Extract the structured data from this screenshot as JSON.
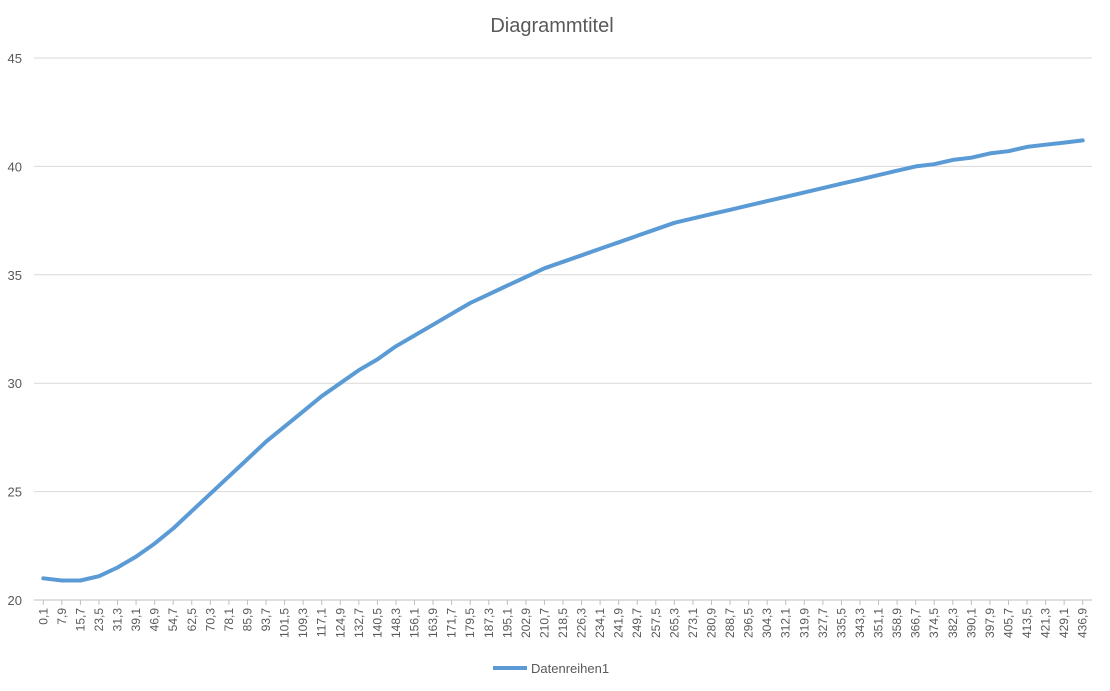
{
  "chart_data": {
    "type": "line",
    "title": "Diagrammtitel",
    "xlabel": "",
    "ylabel": "",
    "ylim": [
      20,
      45
    ],
    "yticks": [
      20,
      25,
      30,
      35,
      40,
      45
    ],
    "categories": [
      "0,1",
      "7,9",
      "15,7",
      "23,5",
      "31,3",
      "39,1",
      "46,9",
      "54,7",
      "62,5",
      "70,3",
      "78,1",
      "85,9",
      "93,7",
      "101,5",
      "109,3",
      "117,1",
      "124,9",
      "132,7",
      "140,5",
      "148,3",
      "156,1",
      "163,9",
      "171,7",
      "179,5",
      "187,3",
      "195,1",
      "202,9",
      "210,7",
      "218,5",
      "226,3",
      "234,1",
      "241,9",
      "249,7",
      "257,5",
      "265,3",
      "273,1",
      "280,9",
      "288,7",
      "296,5",
      "304,3",
      "312,1",
      "319,9",
      "327,7",
      "335,5",
      "343,3",
      "351,1",
      "358,9",
      "366,7",
      "374,5",
      "382,3",
      "390,1",
      "397,9",
      "405,7",
      "413,5",
      "421,3",
      "429,1",
      "436,9"
    ],
    "grid": true,
    "legend_position": "bottom",
    "color": "#5b9bd5",
    "series": [
      {
        "name": "Datenreihen1",
        "values": [
          21.0,
          20.9,
          20.9,
          21.1,
          21.5,
          22.0,
          22.6,
          23.3,
          24.1,
          24.9,
          25.7,
          26.5,
          27.3,
          28.0,
          28.7,
          29.4,
          30.0,
          30.6,
          31.1,
          31.7,
          32.2,
          32.7,
          33.2,
          33.7,
          34.1,
          34.5,
          34.9,
          35.3,
          35.6,
          35.9,
          36.2,
          36.5,
          36.8,
          37.1,
          37.4,
          37.6,
          37.8,
          38.0,
          38.2,
          38.4,
          38.6,
          38.8,
          39.0,
          39.2,
          39.4,
          39.6,
          39.8,
          40.0,
          40.1,
          40.3,
          40.4,
          40.6,
          40.7,
          40.9,
          41.0,
          41.1,
          41.2
        ]
      }
    ]
  }
}
